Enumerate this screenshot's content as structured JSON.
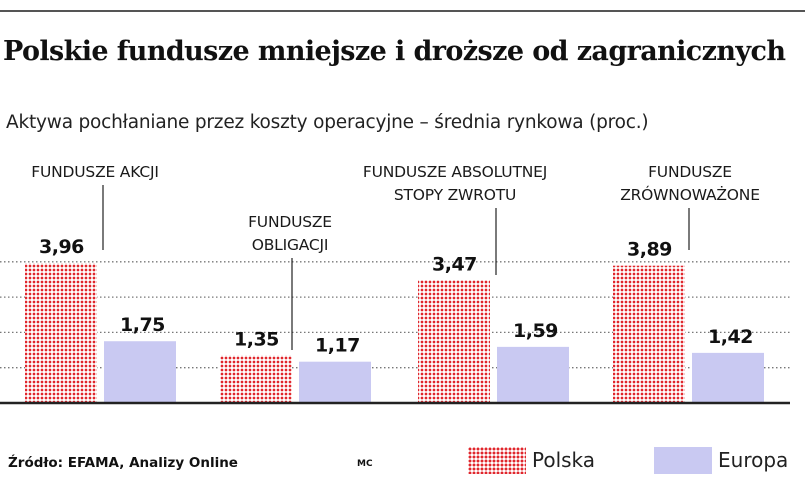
{
  "chart_data": {
    "type": "bar",
    "title": "Polskie fundusze mniejsze i droższe od zagranicznych",
    "subtitle": "Aktywa pochłaniane przez koszty operacyjne – średnia rynkowa (proc.)",
    "categories": [
      [
        "FUNDUSZE AKCJI"
      ],
      [
        "FUNDUSZE",
        "OBLIGACJI"
      ],
      [
        "FUNDUSZE ABSOLUTNEJ",
        "STOPY ZWROTU"
      ],
      [
        "FUNDUSZE",
        "ZRÓWNOWAŻONE"
      ]
    ],
    "series": [
      {
        "name": "Polska",
        "values": [
          3.96,
          1.35,
          3.47,
          3.89
        ],
        "labels": [
          "3,96",
          "1,35",
          "3,47",
          "3,89"
        ]
      },
      {
        "name": "Europa",
        "values": [
          1.75,
          1.17,
          1.59,
          1.42
        ],
        "labels": [
          "1,75",
          "1,17",
          "1,59",
          "1,42"
        ]
      }
    ],
    "ylim": [
      0,
      5
    ],
    "grid": true,
    "colors": {
      "polska": "#e0262c",
      "europa": "#c9c9f2",
      "axis": "#222222",
      "grid": "#777777"
    }
  },
  "footer": {
    "source": "Źródło: EFAMA, Analizy Online",
    "author": "MC"
  }
}
